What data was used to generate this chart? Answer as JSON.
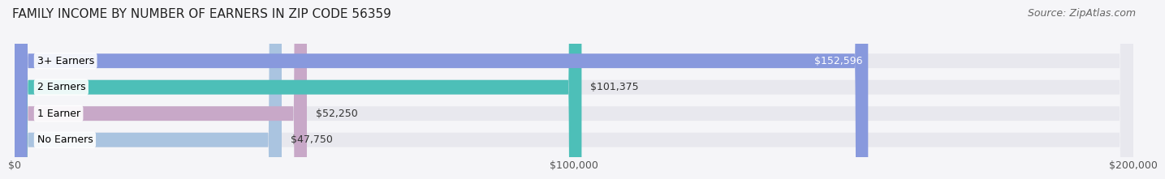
{
  "title": "FAMILY INCOME BY NUMBER OF EARNERS IN ZIP CODE 56359",
  "source": "Source: ZipAtlas.com",
  "categories": [
    "No Earners",
    "1 Earner",
    "2 Earners",
    "3+ Earners"
  ],
  "values": [
    47750,
    52250,
    101375,
    152596
  ],
  "value_labels": [
    "$47,750",
    "$52,250",
    "$101,375",
    "$152,596"
  ],
  "bar_colors": [
    "#aac4e0",
    "#c8a8c8",
    "#4dbfb8",
    "#8899dd"
  ],
  "bar_bg_color": "#e8e8ee",
  "xlim": [
    0,
    200000
  ],
  "xtick_values": [
    0,
    100000,
    200000
  ],
  "xtick_labels": [
    "$0",
    "$100,000",
    "$200,000"
  ],
  "title_fontsize": 11,
  "source_fontsize": 9,
  "label_fontsize": 9,
  "tick_fontsize": 9,
  "bar_height": 0.55,
  "background_color": "#f5f5f8"
}
